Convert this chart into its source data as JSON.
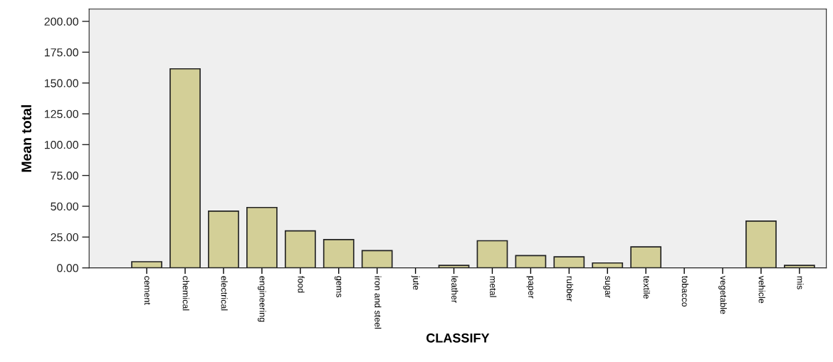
{
  "chart_data": {
    "type": "bar",
    "xlabel": "CLASSIFY",
    "ylabel": "Mean total",
    "categories": [
      "cement",
      "chemical",
      "electrical",
      "engineering",
      "food",
      "gems",
      "iron and steel",
      "jute",
      "leather",
      "metal",
      "paper",
      "rubber",
      "sugar",
      "textile",
      "tobacco",
      "vegetable",
      "vehicle",
      "mis"
    ],
    "values": [
      5,
      161.5,
      46,
      49,
      30,
      23,
      14,
      null,
      2,
      22,
      10,
      9,
      4,
      17,
      null,
      null,
      38,
      2
    ],
    "color": "#d3cf97",
    "ylim": [
      0,
      210
    ],
    "yticks": [
      {
        "value": 0,
        "label": "0.00"
      },
      {
        "value": 25,
        "label": "25.00"
      },
      {
        "value": 50,
        "label": "50.00"
      },
      {
        "value": 75,
        "label": "75.00"
      },
      {
        "value": 100,
        "label": "100.00"
      },
      {
        "value": 125,
        "label": "125.00"
      },
      {
        "value": 150,
        "label": "150.00"
      },
      {
        "value": 175,
        "label": "175.00"
      },
      {
        "value": 200,
        "label": "200.00"
      }
    ],
    "grid": false,
    "legend": false
  }
}
